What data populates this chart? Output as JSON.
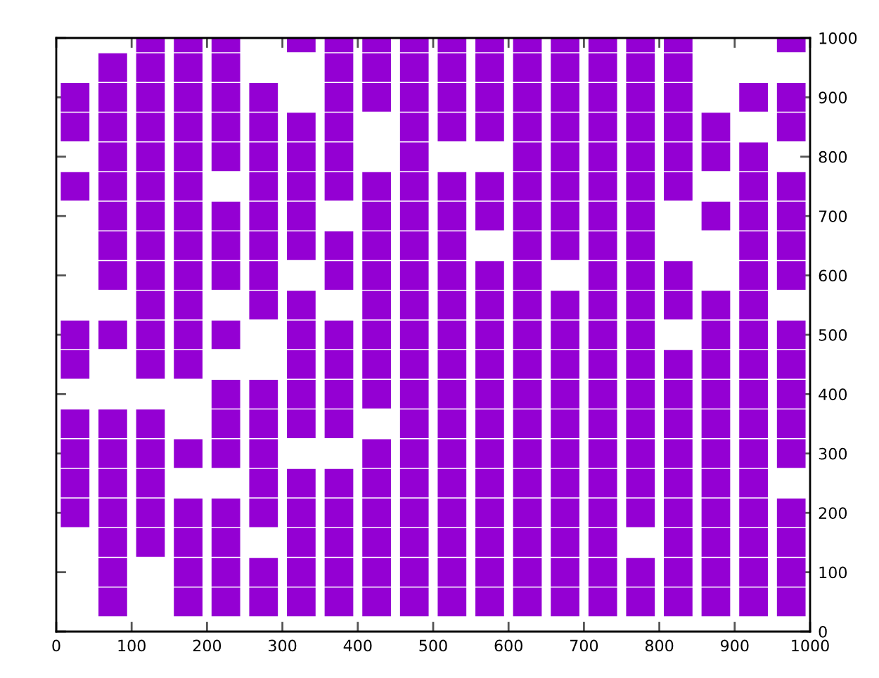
{
  "chart_data": {
    "type": "scatter",
    "marker": "square",
    "xlim": [
      0,
      1000
    ],
    "xticks": [
      0,
      100,
      200,
      300,
      400,
      500,
      600,
      700,
      800,
      900,
      1000
    ],
    "ylim": [
      0,
      1000
    ],
    "yticks": [
      0,
      100,
      200,
      300,
      400,
      500,
      600,
      700,
      800,
      900,
      1000
    ],
    "series": [
      {
        "color": "#9400d3",
        "x": [
          125,
          175,
          225,
          325,
          375,
          425,
          475,
          525,
          575,
          625,
          675,
          725,
          775,
          825,
          975,
          75,
          125,
          175,
          225,
          375,
          425,
          475,
          525,
          575,
          625,
          675,
          725,
          775,
          825,
          25,
          75,
          125,
          175,
          225,
          275,
          375,
          425,
          475,
          525,
          575,
          625,
          675,
          725,
          775,
          825,
          925,
          975,
          25,
          75,
          125,
          175,
          225,
          275,
          325,
          375,
          475,
          525,
          575,
          625,
          675,
          725,
          775,
          825,
          875,
          975,
          75,
          125,
          175,
          225,
          275,
          325,
          375,
          475,
          625,
          675,
          725,
          775,
          825,
          875,
          925,
          25,
          75,
          125,
          175,
          275,
          325,
          375,
          425,
          475,
          525,
          575,
          625,
          675,
          725,
          775,
          825,
          925,
          975,
          75,
          125,
          175,
          225,
          275,
          325,
          425,
          475,
          525,
          575,
          625,
          675,
          725,
          775,
          875,
          925,
          975,
          75,
          125,
          175,
          225,
          275,
          325,
          375,
          425,
          475,
          525,
          625,
          675,
          725,
          775,
          925,
          975,
          75,
          125,
          175,
          225,
          275,
          375,
          425,
          475,
          525,
          575,
          625,
          725,
          775,
          825,
          925,
          975,
          125,
          175,
          275,
          325,
          425,
          475,
          525,
          575,
          625,
          675,
          725,
          775,
          825,
          875,
          925,
          25,
          75,
          125,
          175,
          225,
          325,
          375,
          425,
          475,
          525,
          575,
          625,
          675,
          725,
          775,
          875,
          925,
          975,
          25,
          125,
          175,
          325,
          375,
          425,
          475,
          525,
          575,
          625,
          675,
          725,
          775,
          825,
          875,
          925,
          975,
          225,
          275,
          325,
          375,
          425,
          475,
          525,
          575,
          625,
          675,
          725,
          775,
          825,
          875,
          925,
          975,
          25,
          75,
          125,
          225,
          275,
          325,
          375,
          475,
          525,
          575,
          625,
          675,
          725,
          775,
          825,
          875,
          925,
          975,
          25,
          75,
          125,
          175,
          225,
          275,
          425,
          475,
          525,
          575,
          625,
          675,
          725,
          775,
          825,
          875,
          925,
          975,
          25,
          75,
          125,
          275,
          325,
          375,
          425,
          475,
          525,
          575,
          625,
          675,
          725,
          775,
          825,
          875,
          925,
          25,
          75,
          125,
          175,
          225,
          275,
          325,
          375,
          425,
          475,
          525,
          575,
          625,
          675,
          725,
          775,
          825,
          875,
          925,
          975,
          75,
          125,
          175,
          225,
          325,
          375,
          425,
          475,
          525,
          575,
          625,
          675,
          725,
          825,
          875,
          925,
          975,
          75,
          175,
          225,
          275,
          325,
          375,
          425,
          475,
          525,
          575,
          625,
          675,
          725,
          775,
          825,
          875,
          925,
          975,
          75,
          175,
          225,
          275,
          325,
          375,
          425,
          475,
          525,
          575,
          625,
          675,
          725,
          775,
          825,
          875,
          925,
          975
        ],
        "values": [
          1000,
          1000,
          1000,
          1000,
          1000,
          1000,
          1000,
          1000,
          1000,
          1000,
          1000,
          1000,
          1000,
          1000,
          1000,
          950,
          950,
          950,
          950,
          950,
          950,
          950,
          950,
          950,
          950,
          950,
          950,
          950,
          950,
          900,
          900,
          900,
          900,
          900,
          900,
          900,
          900,
          900,
          900,
          900,
          900,
          900,
          900,
          900,
          900,
          900,
          900,
          850,
          850,
          850,
          850,
          850,
          850,
          850,
          850,
          850,
          850,
          850,
          850,
          850,
          850,
          850,
          850,
          850,
          850,
          800,
          800,
          800,
          800,
          800,
          800,
          800,
          800,
          800,
          800,
          800,
          800,
          800,
          800,
          800,
          750,
          750,
          750,
          750,
          750,
          750,
          750,
          750,
          750,
          750,
          750,
          750,
          750,
          750,
          750,
          750,
          750,
          750,
          700,
          700,
          700,
          700,
          700,
          700,
          700,
          700,
          700,
          700,
          700,
          700,
          700,
          700,
          700,
          700,
          700,
          650,
          650,
          650,
          650,
          650,
          650,
          650,
          650,
          650,
          650,
          650,
          650,
          650,
          650,
          650,
          650,
          600,
          600,
          600,
          600,
          600,
          600,
          600,
          600,
          600,
          600,
          600,
          600,
          600,
          600,
          600,
          600,
          550,
          550,
          550,
          550,
          550,
          550,
          550,
          550,
          550,
          550,
          550,
          550,
          550,
          550,
          550,
          500,
          500,
          500,
          500,
          500,
          500,
          500,
          500,
          500,
          500,
          500,
          500,
          500,
          500,
          500,
          500,
          500,
          500,
          450,
          450,
          450,
          450,
          450,
          450,
          450,
          450,
          450,
          450,
          450,
          450,
          450,
          450,
          450,
          450,
          450,
          400,
          400,
          400,
          400,
          400,
          400,
          400,
          400,
          400,
          400,
          400,
          400,
          400,
          400,
          400,
          400,
          350,
          350,
          350,
          350,
          350,
          350,
          350,
          350,
          350,
          350,
          350,
          350,
          350,
          350,
          350,
          350,
          350,
          350,
          300,
          300,
          300,
          300,
          300,
          300,
          300,
          300,
          300,
          300,
          300,
          300,
          300,
          300,
          300,
          300,
          300,
          300,
          250,
          250,
          250,
          250,
          250,
          250,
          250,
          250,
          250,
          250,
          250,
          250,
          250,
          250,
          250,
          250,
          250,
          200,
          200,
          200,
          200,
          200,
          200,
          200,
          200,
          200,
          200,
          200,
          200,
          200,
          200,
          200,
          200,
          200,
          200,
          200,
          200,
          150,
          150,
          150,
          150,
          150,
          150,
          150,
          150,
          150,
          150,
          150,
          150,
          150,
          150,
          150,
          150,
          150,
          100,
          100,
          100,
          100,
          100,
          100,
          100,
          100,
          100,
          100,
          100,
          100,
          100,
          100,
          100,
          100,
          100,
          100,
          50,
          50,
          50,
          50,
          50,
          50,
          50,
          50,
          50,
          50,
          50,
          50,
          50,
          50,
          50,
          50,
          50,
          50
        ]
      }
    ]
  }
}
